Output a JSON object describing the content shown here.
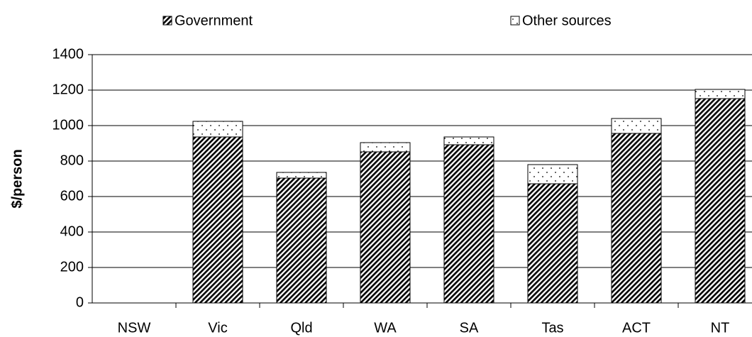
{
  "chart_data": {
    "type": "stacked-bar",
    "ylabel": "$/person",
    "categories": [
      "NSW",
      "Vic",
      "Qld",
      "WA",
      "SA",
      "Tas",
      "ACT",
      "NT"
    ],
    "series": [
      {
        "name": "Government",
        "color": "#000000",
        "pattern": "hatch",
        "values": [
          null,
          936,
          704,
          852,
          892,
          672,
          956,
          1152
        ]
      },
      {
        "name": "Other sources",
        "color": "#000000",
        "pattern": "dots",
        "values": [
          null,
          88,
          32,
          52,
          44,
          108,
          84,
          52
        ]
      }
    ],
    "ylim": [
      0,
      1400
    ],
    "yticks": [
      0,
      200,
      400,
      600,
      800,
      1000,
      1200,
      1400
    ],
    "grid": true
  }
}
